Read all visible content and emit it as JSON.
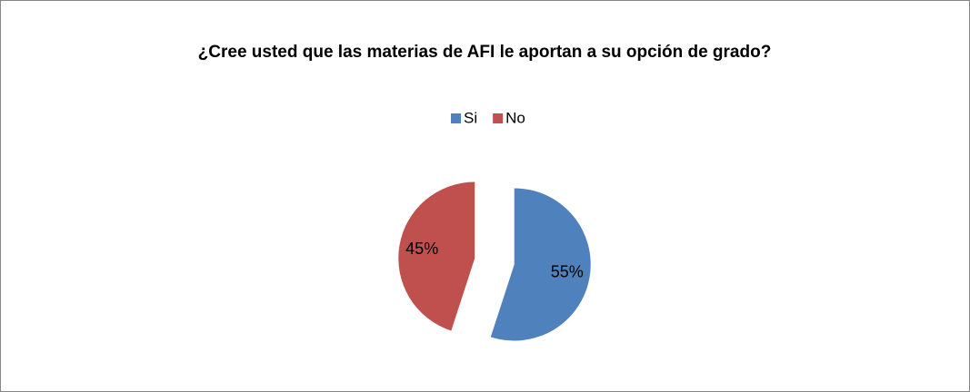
{
  "chart_data": {
    "type": "pie",
    "title": "¿Cree usted que las materias de AFI le aportan a su opción de grado?",
    "categories": [
      "Si",
      "No"
    ],
    "values": [
      55,
      45
    ],
    "value_labels": [
      "55%",
      "45%"
    ],
    "colors": [
      "#4f81bd",
      "#c0504d"
    ],
    "legend": "top",
    "exploded": true
  }
}
